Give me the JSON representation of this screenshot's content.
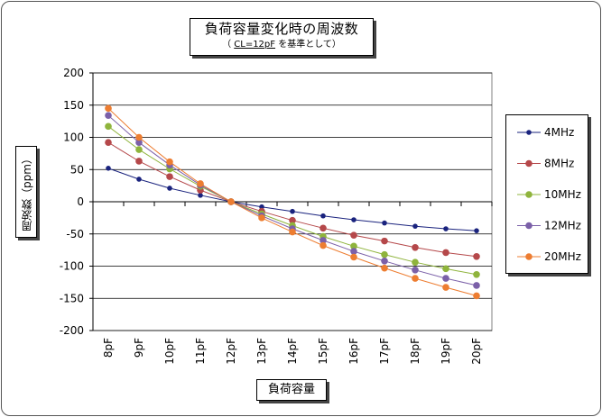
{
  "title": "負荷容量変化時の周波数",
  "subtitle_prefix": "（ ",
  "subtitle_underlined": "CL=12pF",
  "subtitle_suffix": " を基準として）",
  "ylabel": "周波数（ppm）",
  "xlabel": "負荷容量",
  "chart_data": {
    "type": "line",
    "title": "負荷容量変化時の周波数",
    "subtitle": "（ CL=12pF を基準として）",
    "xlabel": "負荷容量",
    "ylabel": "周波数（ppm）",
    "categories": [
      "8pF",
      "9pF",
      "10pF",
      "11pF",
      "12pF",
      "13pF",
      "14pF",
      "15pF",
      "16pF",
      "17pF",
      "18pF",
      "19pF",
      "20pF"
    ],
    "ylim": [
      -200,
      200
    ],
    "yticks": [
      -200,
      -150,
      -100,
      -50,
      0,
      50,
      100,
      150,
      200
    ],
    "grid": "horizontal",
    "legend": "right",
    "series": [
      {
        "name": "4MHz",
        "color": "#1a237e",
        "values": [
          52,
          35,
          21,
          10,
          0,
          -8,
          -15,
          -22,
          -28,
          -33,
          -38,
          -42,
          -45
        ]
      },
      {
        "name": "8MHz",
        "color": "#b5484a",
        "values": [
          92,
          63,
          39,
          18,
          0,
          -15,
          -29,
          -41,
          -52,
          -61,
          -71,
          -79,
          -85
        ]
      },
      {
        "name": "10MHz",
        "color": "#8fb43c",
        "values": [
          117,
          81,
          51,
          24,
          0,
          -19,
          -37,
          -54,
          -69,
          -82,
          -94,
          -104,
          -113
        ]
      },
      {
        "name": "12MHz",
        "color": "#7b60a8",
        "values": [
          134,
          92,
          57,
          26,
          0,
          -22,
          -42,
          -60,
          -77,
          -92,
          -106,
          -119,
          -130
        ]
      },
      {
        "name": "20MHz",
        "color": "#ed7d31",
        "values": [
          145,
          100,
          62,
          28,
          0,
          -25,
          -47,
          -68,
          -86,
          -103,
          -119,
          -133,
          -146
        ]
      }
    ]
  }
}
